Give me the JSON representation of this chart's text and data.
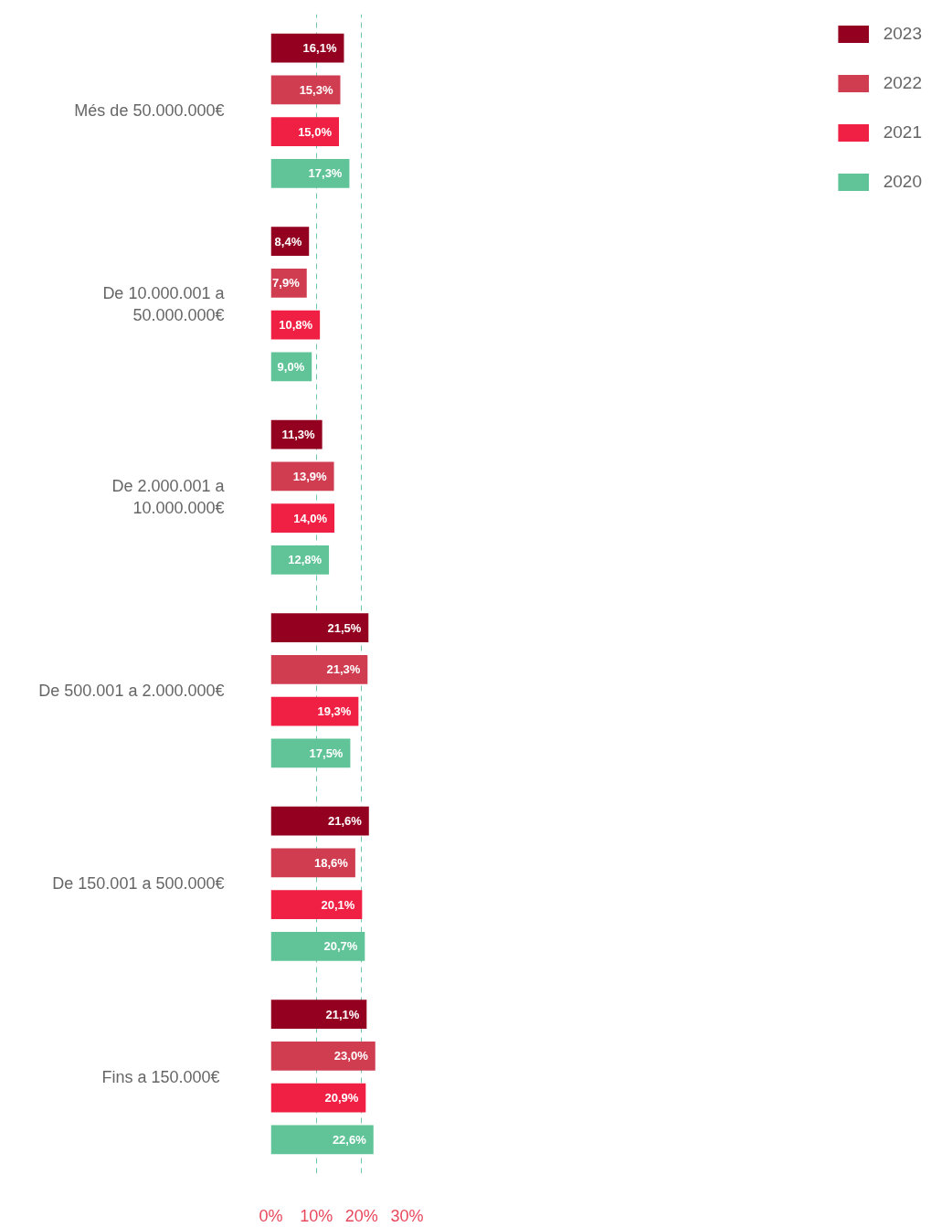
{
  "chart_data": {
    "type": "bar",
    "orientation": "horizontal",
    "categories": [
      "Més de 50.000.000€",
      "De 10.000.001 a\n50.000.000€",
      "De 2.000.001 a\n10.000.000€",
      "De 500.001 a 2.000.000€",
      "De 150.001 a 500.000€",
      "Fins a  150.000€"
    ],
    "series": [
      {
        "name": "2023",
        "color": "#940020",
        "values": [
          16.1,
          8.4,
          11.3,
          21.5,
          21.6,
          21.1
        ],
        "value_labels": [
          "16,1%",
          "8,4%",
          "11,3%",
          "21,5%",
          "21,6%",
          "21,1%"
        ]
      },
      {
        "name": "2022",
        "color": "#d03c50",
        "values": [
          15.3,
          7.9,
          13.9,
          21.3,
          18.6,
          23.0
        ],
        "value_labels": [
          "15,3%",
          "7,9%",
          "13,9%",
          "21,3%",
          "18,6%",
          "23,0%"
        ]
      },
      {
        "name": "2021",
        "color": "#f02044",
        "values": [
          15.0,
          10.8,
          14.0,
          19.3,
          20.1,
          20.9
        ],
        "value_labels": [
          "15,0%",
          "10,8%",
          "14,0%",
          "19,3%",
          "20,1%",
          "20,9%"
        ]
      },
      {
        "name": "2020",
        "color": "#60c498",
        "values": [
          17.3,
          9.0,
          12.8,
          17.5,
          20.7,
          22.6
        ],
        "value_labels": [
          "17,3%",
          "9,0%",
          "12,8%",
          "17,5%",
          "20,7%",
          "22,6%"
        ]
      }
    ],
    "xlim": [
      0,
      30
    ],
    "xticks": [
      {
        "value": 0,
        "label": "0%"
      },
      {
        "value": 10,
        "label": "10%"
      },
      {
        "value": 20,
        "label": "20%"
      },
      {
        "value": 30,
        "label": "30%"
      }
    ],
    "grid": "x",
    "legend": "top right"
  }
}
